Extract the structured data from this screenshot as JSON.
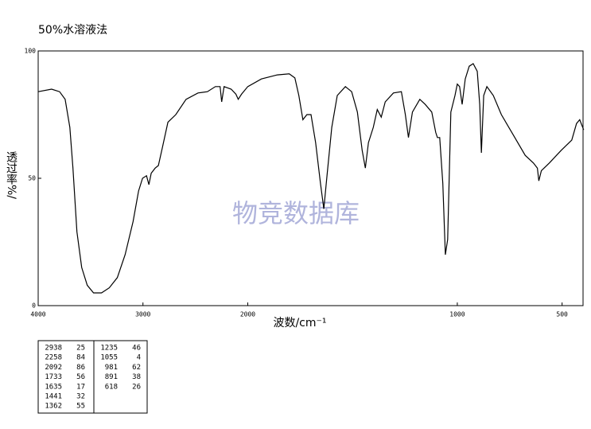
{
  "chart_data": {
    "type": "line",
    "title": "50%水溶液法",
    "watermark": "物竞数据库",
    "xlabel": "波数/cm⁻¹",
    "ylabel": "透过率%/",
    "xlim": [
      4000,
      400
    ],
    "ylim": [
      0,
      100
    ],
    "xticks": [
      4000,
      3000,
      2000,
      1000,
      500
    ],
    "yticks": [
      0,
      50,
      100
    ],
    "x_expansion": {
      "at": 2000,
      "factor": 2
    },
    "series": [
      {
        "color": "#000000",
        "x": [
          4000,
          3872,
          3796,
          3743,
          3698,
          3668,
          3630,
          3585,
          3532,
          3472,
          3396,
          3321,
          3245,
          3170,
          3094,
          3042,
          3004,
          2966,
          2943,
          2921,
          2883,
          2853,
          2815,
          2762,
          2687,
          2589,
          2475,
          2385,
          2309,
          2264,
          2249,
          2226,
          2158,
          2113,
          2091,
          2060,
          2000,
          1935,
          1859,
          1802,
          1775,
          1756,
          1737,
          1718,
          1698,
          1676,
          1653,
          1637,
          1622,
          1599,
          1573,
          1534,
          1504,
          1477,
          1454,
          1439,
          1424,
          1401,
          1382,
          1363,
          1344,
          1305,
          1267,
          1248,
          1233,
          1214,
          1179,
          1153,
          1122,
          1103,
          1095,
          1084,
          1069,
          1057,
          1046,
          1031,
          1011,
          1000,
          989,
          977,
          962,
          943,
          924,
          905,
          893,
          885,
          874,
          859,
          828,
          790,
          733,
          676,
          637,
          618,
          611,
          599,
          561,
          504,
          454,
          431,
          416,
          397
        ],
        "values": [
          84,
          85,
          84,
          81,
          70,
          54,
          29,
          15,
          8,
          5,
          5,
          7,
          11,
          20,
          33,
          45,
          50,
          51,
          47.5,
          52,
          54,
          55,
          62,
          72,
          75,
          81,
          83.5,
          84,
          86,
          86,
          80,
          86,
          85,
          83,
          81,
          83,
          86,
          89,
          90.6,
          91,
          89.4,
          82.5,
          73,
          75,
          75,
          64,
          48,
          38,
          51,
          70,
          82.5,
          86,
          84,
          76,
          61,
          54,
          64,
          70,
          77,
          74,
          80,
          83.5,
          84,
          75,
          66,
          76,
          81,
          79,
          76,
          68,
          66,
          66,
          48,
          20,
          26,
          76,
          82.5,
          87,
          86,
          79,
          89,
          94,
          95,
          92,
          79,
          60,
          82.5,
          86,
          82.5,
          75,
          67,
          59,
          56,
          54,
          49,
          53,
          56,
          61,
          65,
          71.5,
          73,
          69
        ]
      }
    ]
  },
  "peak_table": {
    "left": [
      [
        "2938",
        "25"
      ],
      [
        "2258",
        "84"
      ],
      [
        "2092",
        "86"
      ],
      [
        "1733",
        "56"
      ],
      [
        "1635",
        "17"
      ],
      [
        "1441",
        "32"
      ],
      [
        "1362",
        "55"
      ]
    ],
    "right": [
      [
        "1235",
        "46"
      ],
      [
        "1055",
        "4"
      ],
      [
        "981",
        "62"
      ],
      [
        "891",
        "38"
      ],
      [
        "618",
        "26"
      ]
    ]
  }
}
